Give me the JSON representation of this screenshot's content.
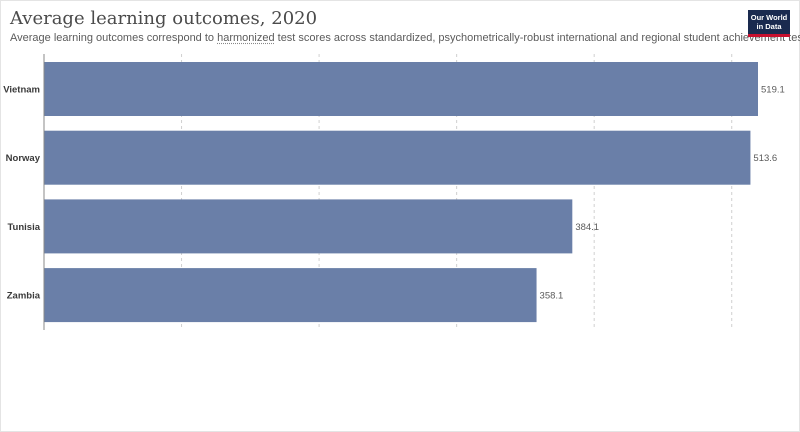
{
  "header": {
    "title": "Average learning outcomes, 2020",
    "subtitle_before": "Average learning outcomes correspond to ",
    "subtitle_term": "harmonized",
    "subtitle_after": " test scores across standardized, psychometrically-robust international and regional student achievement tests.",
    "logo_line1": "Our World",
    "logo_line2": "in Data"
  },
  "colors": {
    "bar": "#6a7fa8",
    "grid": "#d0d0d0",
    "axis": "#888888"
  },
  "chart_data": {
    "type": "bar",
    "orientation": "horizontal",
    "categories": [
      "Vietnam",
      "Norway",
      "Tunisia",
      "Zambia"
    ],
    "values": [
      519.1,
      513.6,
      384.1,
      358.1
    ],
    "value_labels": [
      "519.1",
      "513.6",
      "384.1",
      "358.1"
    ],
    "xlim": [
      0,
      519.1
    ],
    "grid": true,
    "title": "Average learning outcomes, 2020"
  }
}
